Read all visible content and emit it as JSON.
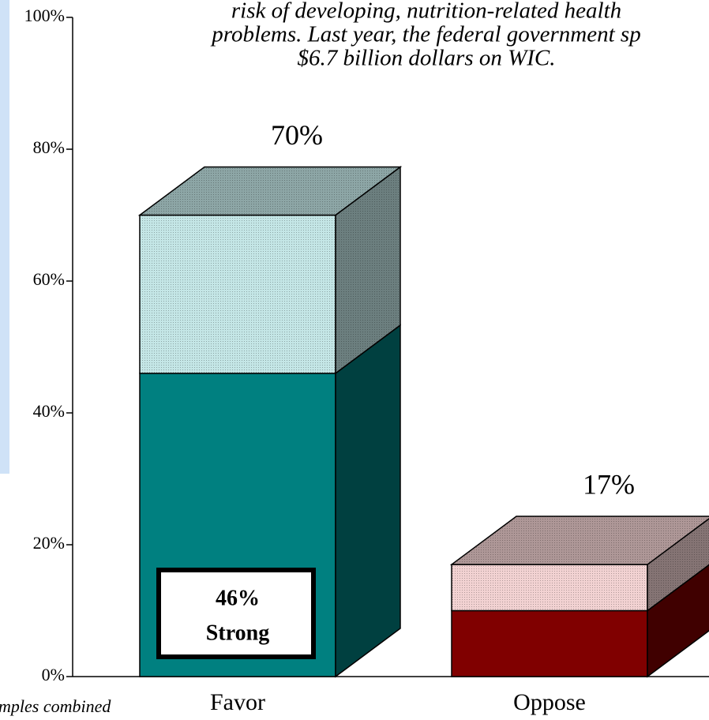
{
  "chart_data": {
    "type": "stacked-bar-3d",
    "title_lines": [
      "risk of developing, nutrition-related health",
      "problems.  Last year, the federal government sp",
      "$6.7 billion dollars on WIC."
    ],
    "note": "mples combined",
    "categories": [
      "Favor",
      "Oppose"
    ],
    "series": [
      {
        "name": "Strong",
        "colors": [
          "#008080",
          "#800000"
        ],
        "values": [
          46,
          10
        ],
        "value_labels": [
          "46%",
          null
        ]
      },
      {
        "colors": [
          "#c4e6e6",
          "#f2d2d2"
        ],
        "values": [
          24,
          7
        ]
      }
    ],
    "totals": [
      70,
      17
    ],
    "total_labels": [
      "70%",
      "17%"
    ],
    "ylim": [
      0,
      100
    ],
    "yticks": [
      {
        "value": 0,
        "label": "0%"
      },
      {
        "value": 20,
        "label": "20%"
      },
      {
        "value": 40,
        "label": "40%"
      },
      {
        "value": 60,
        "label": "60%"
      },
      {
        "value": 80,
        "label": "80%"
      },
      {
        "value": 100,
        "label": "100%"
      }
    ]
  }
}
